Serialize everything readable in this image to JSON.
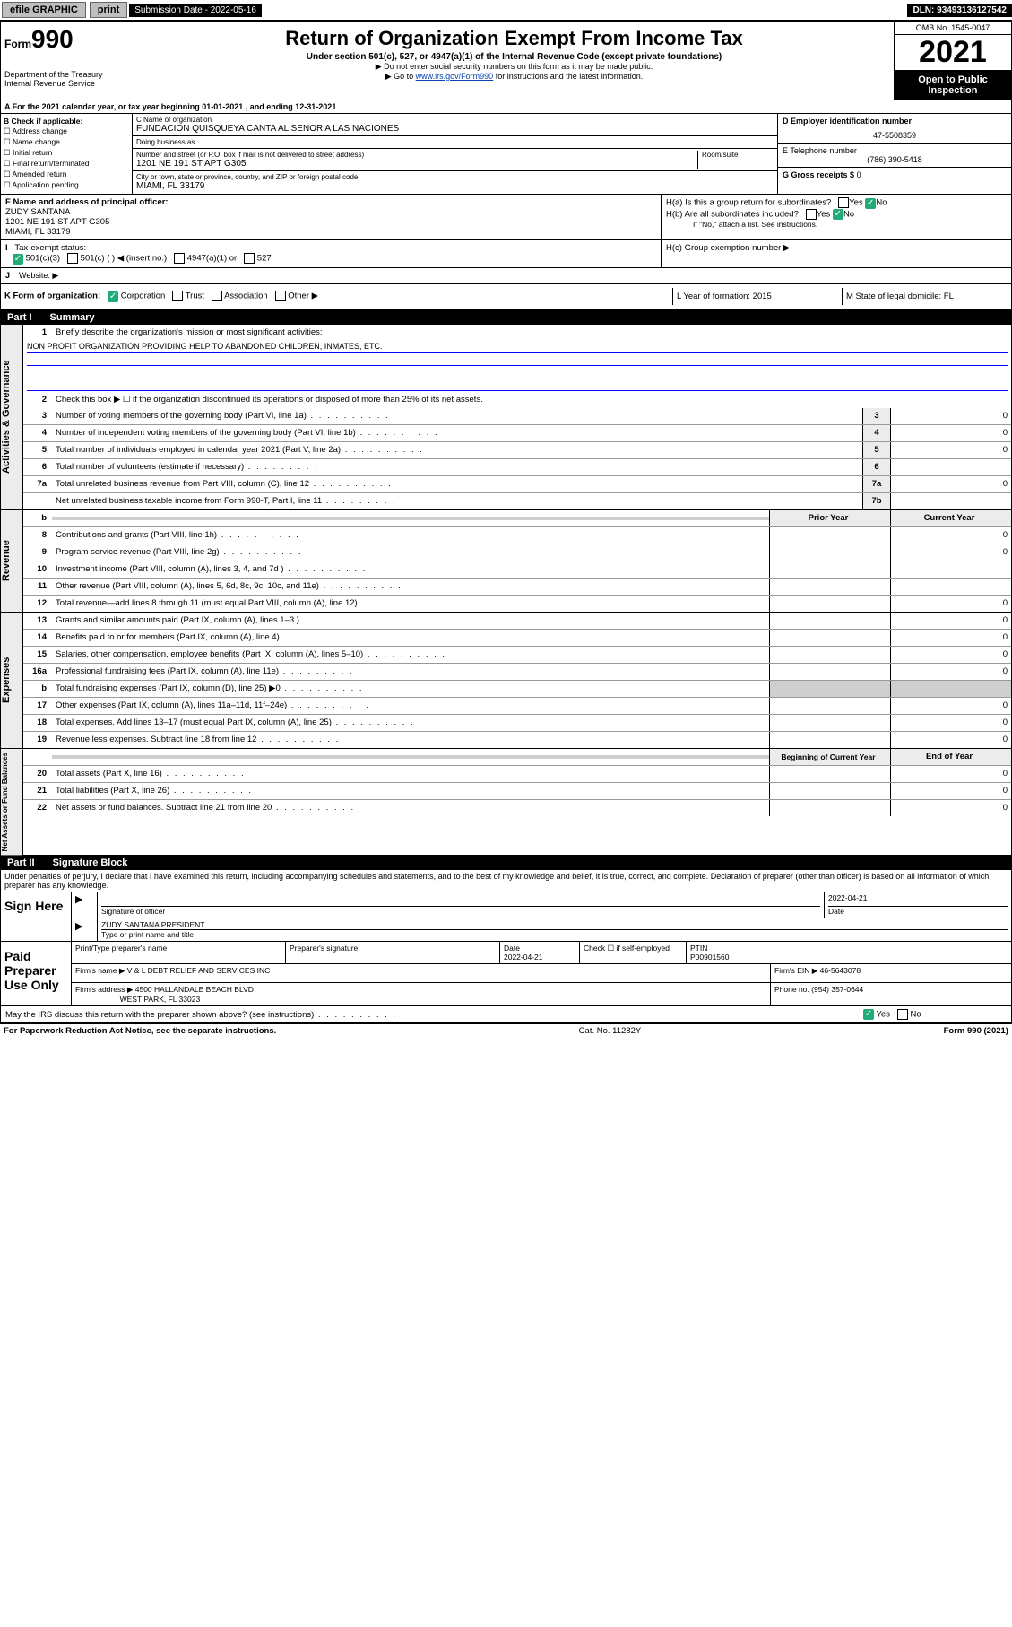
{
  "topbar": {
    "efile": "efile GRAPHIC",
    "print": "print",
    "sub_date_label": "Submission Date - 2022-05-16",
    "dln": "DLN: 93493136127542"
  },
  "header": {
    "form_label": "Form",
    "form_num": "990",
    "title": "Return of Organization Exempt From Income Tax",
    "subtitle": "Under section 501(c), 527, or 4947(a)(1) of the Internal Revenue Code (except private foundations)",
    "note1": "▶ Do not enter social security numbers on this form as it may be made public.",
    "note2_pre": "▶ Go to ",
    "note2_link": "www.irs.gov/Form990",
    "note2_post": " for instructions and the latest information.",
    "dept": "Department of the Treasury",
    "irs": "Internal Revenue Service",
    "omb": "OMB No. 1545-0047",
    "year": "2021",
    "open": "Open to Public Inspection"
  },
  "section_a": {
    "a_text": "A For the 2021 calendar year, or tax year beginning 01-01-2021   , and ending 12-31-2021",
    "b_label": "B Check if applicable:",
    "b_items": [
      "Address change",
      "Name change",
      "Initial return",
      "Final return/terminated",
      "Amended return",
      "Application pending"
    ],
    "c_name_label": "C Name of organization",
    "c_name": "FUNDACION QUISQUEYA CANTA AL SENOR A LAS NACIONES",
    "dba_label": "Doing business as",
    "dba": "",
    "addr_label": "Number and street (or P.O. box if mail is not delivered to street address)",
    "room_label": "Room/suite",
    "addr": "1201 NE 191 ST APT G305",
    "city_label": "City or town, state or province, country, and ZIP or foreign postal code",
    "city": "MIAMI, FL  33179",
    "d_label": "D Employer identification number",
    "d_ein": "47-5508359",
    "e_label": "E Telephone number",
    "e_phone": "(786) 390-5418",
    "g_label": "G Gross receipts $",
    "g_val": "0",
    "f_label": "F  Name and address of principal officer:",
    "f_name": "ZUDY SANTANA",
    "f_addr1": "1201 NE 191 ST APT G305",
    "f_addr2": "MIAMI, FL  33179",
    "ha": "H(a)  Is this a group return for subordinates?",
    "hb": "H(b)  Are all subordinates included?",
    "hb_note": "If \"No,\" attach a list. See instructions.",
    "hc": "H(c)  Group exemption number ▶",
    "yes": "Yes",
    "no": "No",
    "i_label": "Tax-exempt status:",
    "i_501c3": "501(c)(3)",
    "i_501c": "501(c) (  ) ◀ (insert no.)",
    "i_4947": "4947(a)(1) or",
    "i_527": "527",
    "j_label": "Website: ▶",
    "k_label": "K Form of organization:",
    "k_corp": "Corporation",
    "k_trust": "Trust",
    "k_assoc": "Association",
    "k_other": "Other ▶",
    "l_label": "L Year of formation: 2015",
    "m_label": "M State of legal domicile: FL"
  },
  "part1": {
    "header": "Part I",
    "title": "Summary",
    "side_gov": "Activities & Governance",
    "side_rev": "Revenue",
    "side_exp": "Expenses",
    "side_net": "Net Assets or Fund Balances",
    "line1_label": "Briefly describe the organization's mission or most significant activities:",
    "line1_text": "NON PROFIT ORGANIZATION PROVIDING HELP TO ABANDONED CHILDREN, INMATES, ETC.",
    "line2": "Check this box ▶ ☐  if the organization discontinued its operations or disposed of more than 25% of its net assets.",
    "lines_gov": [
      {
        "n": "3",
        "d": "Number of voting members of the governing body (Part VI, line 1a)",
        "box": "3",
        "v": "0"
      },
      {
        "n": "4",
        "d": "Number of independent voting members of the governing body (Part VI, line 1b)",
        "box": "4",
        "v": "0"
      },
      {
        "n": "5",
        "d": "Total number of individuals employed in calendar year 2021 (Part V, line 2a)",
        "box": "5",
        "v": "0"
      },
      {
        "n": "6",
        "d": "Total number of volunteers (estimate if necessary)",
        "box": "6",
        "v": ""
      },
      {
        "n": "7a",
        "d": "Total unrelated business revenue from Part VIII, column (C), line 12",
        "box": "7a",
        "v": "0"
      },
      {
        "n": "",
        "d": "Net unrelated business taxable income from Form 990-T, Part I, line 11",
        "box": "7b",
        "v": ""
      }
    ],
    "prior_year": "Prior Year",
    "current_year": "Current Year",
    "lines_rev": [
      {
        "n": "8",
        "d": "Contributions and grants (Part VIII, line 1h)",
        "p": "",
        "c": "0"
      },
      {
        "n": "9",
        "d": "Program service revenue (Part VIII, line 2g)",
        "p": "",
        "c": "0"
      },
      {
        "n": "10",
        "d": "Investment income (Part VIII, column (A), lines 3, 4, and 7d )",
        "p": "",
        "c": ""
      },
      {
        "n": "11",
        "d": "Other revenue (Part VIII, column (A), lines 5, 6d, 8c, 9c, 10c, and 11e)",
        "p": "",
        "c": ""
      },
      {
        "n": "12",
        "d": "Total revenue—add lines 8 through 11 (must equal Part VIII, column (A), line 12)",
        "p": "",
        "c": "0"
      }
    ],
    "lines_exp": [
      {
        "n": "13",
        "d": "Grants and similar amounts paid (Part IX, column (A), lines 1–3 )",
        "p": "",
        "c": "0"
      },
      {
        "n": "14",
        "d": "Benefits paid to or for members (Part IX, column (A), line 4)",
        "p": "",
        "c": "0"
      },
      {
        "n": "15",
        "d": "Salaries, other compensation, employee benefits (Part IX, column (A), lines 5–10)",
        "p": "",
        "c": "0"
      },
      {
        "n": "16a",
        "d": "Professional fundraising fees (Part IX, column (A), line 11e)",
        "p": "",
        "c": "0"
      },
      {
        "n": "b",
        "d": "Total fundraising expenses (Part IX, column (D), line 25) ▶0",
        "p": "shade",
        "c": "shade"
      },
      {
        "n": "17",
        "d": "Other expenses (Part IX, column (A), lines 11a–11d, 11f–24e)",
        "p": "",
        "c": "0"
      },
      {
        "n": "18",
        "d": "Total expenses. Add lines 13–17 (must equal Part IX, column (A), line 25)",
        "p": "",
        "c": "0"
      },
      {
        "n": "19",
        "d": "Revenue less expenses. Subtract line 18 from line 12",
        "p": "",
        "c": "0"
      }
    ],
    "beg_year": "Beginning of Current Year",
    "end_year": "End of Year",
    "lines_net": [
      {
        "n": "20",
        "d": "Total assets (Part X, line 16)",
        "p": "",
        "c": "0"
      },
      {
        "n": "21",
        "d": "Total liabilities (Part X, line 26)",
        "p": "",
        "c": "0"
      },
      {
        "n": "22",
        "d": "Net assets or fund balances. Subtract line 21 from line 20",
        "p": "",
        "c": "0"
      }
    ]
  },
  "part2": {
    "header": "Part II",
    "title": "Signature Block",
    "decl": "Under penalties of perjury, I declare that I have examined this return, including accompanying schedules and statements, and to the best of my knowledge and belief, it is true, correct, and complete. Declaration of preparer (other than officer) is based on all information of which preparer has any knowledge.",
    "sign_here": "Sign Here",
    "sig_officer": "Signature of officer",
    "sig_date": "Date",
    "sig_date_v": "2022-04-21",
    "officer_name": "ZUDY SANTANA  PRESIDENT",
    "type_name": "Type or print name and title",
    "paid": "Paid Preparer Use Only",
    "prep_name_label": "Print/Type preparer's name",
    "prep_sig_label": "Preparer's signature",
    "date_label": "Date",
    "date_v": "2022-04-21",
    "check_if": "Check ☐ if self-employed",
    "ptin_label": "PTIN",
    "ptin": "P00901560",
    "firm_name_label": "Firm's name    ▶",
    "firm_name": "V & L DEBT RELIEF AND SERVICES INC",
    "firm_ein_label": "Firm's EIN ▶",
    "firm_ein": "46-5643078",
    "firm_addr_label": "Firm's address ▶",
    "firm_addr1": "4500 HALLANDALE BEACH BLVD",
    "firm_addr2": "WEST PARK, FL  33023",
    "phone_label": "Phone no.",
    "phone": "(954) 357-0644",
    "may_irs": "May the IRS discuss this return with the preparer shown above? (see instructions)"
  },
  "footer": {
    "left": "For Paperwork Reduction Act Notice, see the separate instructions.",
    "mid": "Cat. No. 11282Y",
    "right": "Form 990 (2021)"
  }
}
